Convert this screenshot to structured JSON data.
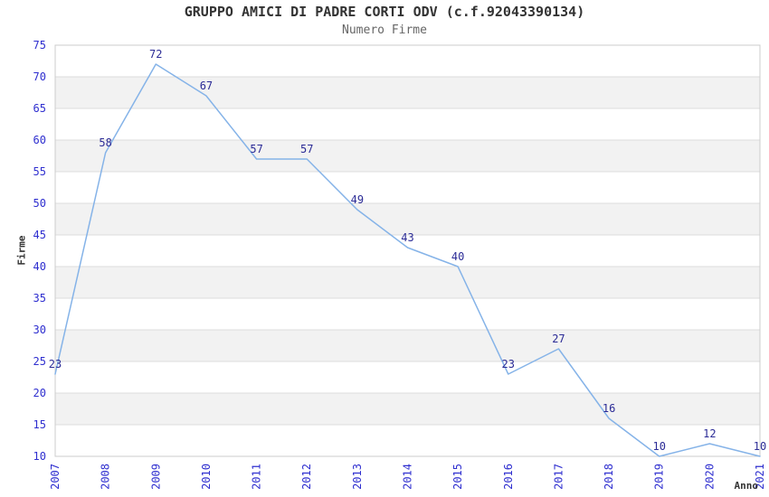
{
  "chart_data": {
    "type": "line",
    "title": "GRUPPO AMICI DI PADRE CORTI ODV (c.f.92043390134)",
    "subtitle": "Numero Firme",
    "xlabel": "Anno",
    "ylabel": "Firme",
    "categories": [
      "2007",
      "2008",
      "2009",
      "2010",
      "2011",
      "2012",
      "2013",
      "2014",
      "2015",
      "2016",
      "2017",
      "2018",
      "2019",
      "2020",
      "2021"
    ],
    "values": [
      23,
      58,
      72,
      67,
      57,
      57,
      49,
      43,
      40,
      23,
      27,
      16,
      10,
      12,
      10
    ],
    "ylim": [
      10,
      75
    ],
    "yticks": [
      10,
      15,
      20,
      25,
      30,
      35,
      40,
      45,
      50,
      55,
      60,
      65,
      70,
      75
    ],
    "grid": true,
    "legend": false,
    "point_labels_visible": true,
    "x_tick_rotation_deg": 90,
    "colors": {
      "line": "#85b3e8",
      "point_label": "#2b2b96",
      "tick_label": "#2e2ecf",
      "band": "#f2f2f2",
      "gridline": "#dcdcdc",
      "plot_border": "#cccccc",
      "title": "#333333",
      "subtitle": "#666666",
      "axis_title": "#333333",
      "background": "#ffffff"
    }
  }
}
